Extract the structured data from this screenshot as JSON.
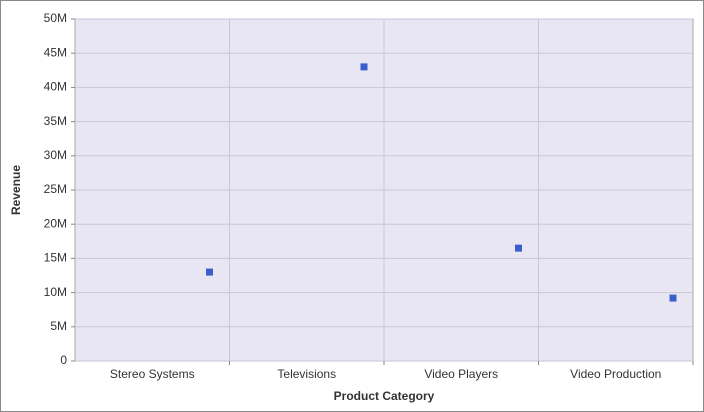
{
  "chart_data": {
    "type": "scatter",
    "x_label": "Product Category",
    "y_label": "Revenue",
    "categories": [
      "Stereo Systems",
      "Televisions",
      "Video Players",
      "Video Production"
    ],
    "values": [
      13000000,
      43000000,
      16500000,
      9200000
    ],
    "color": "#3a5fcd",
    "ylim": [
      0,
      50000000
    ],
    "yticks": [
      0,
      {
        "value": 5000000,
        "label": "5M"
      },
      {
        "value": 10000000,
        "label": "10M"
      },
      {
        "value": 15000000,
        "label": "15M"
      },
      {
        "value": 20000000,
        "label": "20M"
      },
      {
        "value": 25000000,
        "label": "25M"
      },
      {
        "value": 30000000,
        "label": "30M"
      },
      {
        "value": 35000000,
        "label": "35M"
      },
      {
        "value": 40000000,
        "label": "40M"
      },
      {
        "value": 45000000,
        "label": "45M"
      },
      {
        "value": 50000000,
        "label": "50M"
      }
    ],
    "grid": true
  }
}
